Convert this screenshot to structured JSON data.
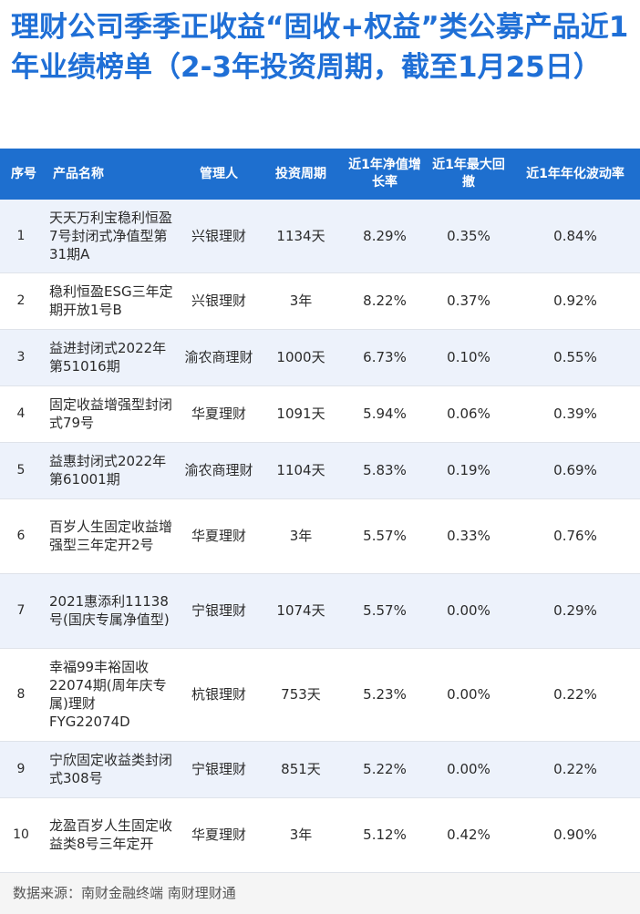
{
  "title": "理财公司季季正收益“固收+权益”类公募产品近1年业绩榜单（2-3年投资周期，截至1月25日）",
  "table": {
    "headers": [
      "序号",
      "产品名称",
      "管理人",
      "投资周期",
      "近1年净值增长率",
      "近1年最大回撤",
      "近1年年化波动率"
    ],
    "rows": [
      {
        "idx": "1",
        "name": "天天万利宝稳利恒盈7号封闭式净值型第31期A",
        "manager": "兴银理财",
        "period": "1134天",
        "growth": "8.29%",
        "drawdown": "0.35%",
        "volatility": "0.84%"
      },
      {
        "idx": "2",
        "name": "稳利恒盈ESG三年定期开放1号B",
        "manager": "兴银理财",
        "period": "3年",
        "growth": "8.22%",
        "drawdown": "0.37%",
        "volatility": "0.92%"
      },
      {
        "idx": "3",
        "name": "益进封闭式2022年第51016期",
        "manager": "渝农商理财",
        "period": "1000天",
        "growth": "6.73%",
        "drawdown": "0.10%",
        "volatility": "0.55%"
      },
      {
        "idx": "4",
        "name": "固定收益增强型封闭式79号",
        "manager": "华夏理财",
        "period": "1091天",
        "growth": "5.94%",
        "drawdown": "0.06%",
        "volatility": "0.39%"
      },
      {
        "idx": "5",
        "name": "益惠封闭式2022年第61001期",
        "manager": "渝农商理财",
        "period": "1104天",
        "growth": "5.83%",
        "drawdown": "0.19%",
        "volatility": "0.69%"
      },
      {
        "idx": "6",
        "name": "百岁人生固定收益增强型三年定开2号",
        "manager": "华夏理财",
        "period": "3年",
        "growth": "5.57%",
        "drawdown": "0.33%",
        "volatility": "0.76%"
      },
      {
        "idx": "7",
        "name": "2021惠添利11138号(国庆专属净值型)",
        "manager": "宁银理财",
        "period": "1074天",
        "growth": "5.57%",
        "drawdown": "0.00%",
        "volatility": "0.29%"
      },
      {
        "idx": "8",
        "name": "幸福99丰裕固收22074期(周年庆专属)理财FYG22074D",
        "manager": "杭银理财",
        "period": "753天",
        "growth": "5.23%",
        "drawdown": "0.00%",
        "volatility": "0.22%"
      },
      {
        "idx": "9",
        "name": "宁欣固定收益类封闭式308号",
        "manager": "宁银理财",
        "period": "851天",
        "growth": "5.22%",
        "drawdown": "0.00%",
        "volatility": "0.22%"
      },
      {
        "idx": "10",
        "name": "龙盈百岁人生固定收益类8号三年定开",
        "manager": "华夏理财",
        "period": "3年",
        "growth": "5.12%",
        "drawdown": "0.42%",
        "volatility": "0.90%"
      }
    ]
  },
  "footer": "数据来源：南财金融终端 南财理财通",
  "colors": {
    "title": "#1f6fd6",
    "header_bg": "#1e6fcf",
    "row_alt": "#edf2fb"
  }
}
